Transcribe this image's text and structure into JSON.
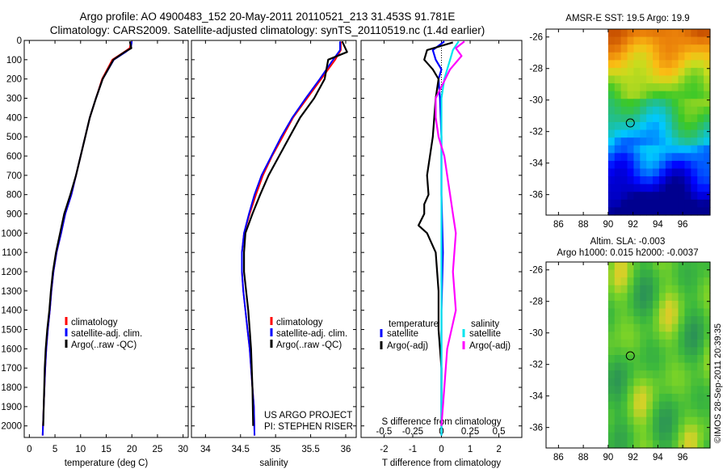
{
  "header": {
    "line1": "Argo profile: AO 4900483_152 20-May-2011 20110521_213 31.453S 91.781E",
    "line2": "Climatology: CARS2009. Satellite-adjusted climatology: synTS_20110519.nc (1.4d earlier)"
  },
  "colors": {
    "clim": "#ff0000",
    "sat": "#0000ff",
    "argo": "#000000",
    "sat_sal": "#00e5ee",
    "argo_sal": "#ff00ff"
  },
  "project_lines": [
    "US ARGO PROJECT",
    "PI: STEPHEN RISER"
  ],
  "footer_stamp": "©IMOS 28-Sep-2011 20:39:35",
  "chart_data": [
    {
      "id": "temperature",
      "type": "line",
      "xlabel": "temperature (deg C)",
      "xlim": [
        -1,
        31
      ],
      "ylim": [
        2060,
        0
      ],
      "xticks": [
        0,
        5,
        10,
        15,
        20,
        25,
        30
      ],
      "yticks": [
        0,
        100,
        200,
        300,
        400,
        500,
        600,
        700,
        800,
        900,
        1000,
        1100,
        1200,
        1300,
        1400,
        1500,
        1600,
        1700,
        1800,
        1900,
        2000
      ],
      "legend": [
        "climatology",
        "satellite-adj. clim.",
        "Argo(..raw -QC)"
      ],
      "series": [
        {
          "key": "clim",
          "name": "climatology",
          "x": [
            19.8,
            19.6,
            18.5,
            16.2,
            14.2,
            13.0,
            11.8,
            10.9,
            10.0,
            9.1,
            8.2,
            7.0,
            6.2,
            5.3,
            4.7,
            4.3,
            4.0,
            3.6,
            3.3,
            3.1,
            2.8,
            2.6
          ],
          "y": [
            5,
            40,
            60,
            100,
            200,
            300,
            400,
            500,
            600,
            700,
            800,
            900,
            1000,
            1100,
            1200,
            1300,
            1400,
            1500,
            1600,
            1700,
            1900,
            2050
          ]
        },
        {
          "key": "sat",
          "name": "satellite-adj. clim.",
          "x": [
            20.0,
            19.8,
            18.8,
            16.5,
            14.3,
            13.0,
            11.8,
            10.9,
            10.0,
            9.1,
            8.2,
            7.0,
            6.2,
            5.3,
            4.7,
            4.3,
            4.0,
            3.6,
            3.3,
            3.1,
            2.8,
            2.6
          ],
          "y": [
            5,
            40,
            60,
            100,
            200,
            300,
            400,
            500,
            600,
            700,
            800,
            900,
            1000,
            1100,
            1200,
            1300,
            1400,
            1500,
            1600,
            1700,
            1900,
            2050
          ]
        },
        {
          "key": "argo",
          "name": "Argo(..raw -QC)",
          "x": [
            19.6,
            19.9,
            18.6,
            16.4,
            14.3,
            13.0,
            11.8,
            10.9,
            10.0,
            9.1,
            8.0,
            6.8,
            6.0,
            5.2,
            4.6,
            4.2,
            3.9,
            3.5,
            3.2,
            3.0,
            2.7
          ],
          "y": [
            5,
            40,
            60,
            100,
            200,
            300,
            400,
            500,
            600,
            700,
            800,
            900,
            1000,
            1100,
            1200,
            1300,
            1400,
            1500,
            1600,
            1700,
            2000
          ]
        }
      ]
    },
    {
      "id": "salinity",
      "type": "line",
      "xlabel": "salinity",
      "xlim": [
        33.8,
        36.15
      ],
      "ylim": [
        2060,
        0
      ],
      "xticks": [
        34,
        34.5,
        35,
        35.5,
        36
      ],
      "legend": [
        "climatology",
        "satellite-adj. clim.",
        "Argo(..raw -QC)"
      ],
      "series": [
        {
          "key": "clim",
          "name": "climatology",
          "x": [
            35.93,
            35.93,
            35.85,
            35.65,
            35.45,
            35.25,
            35.1,
            34.95,
            34.82,
            34.72,
            34.63,
            34.55,
            34.52,
            34.52,
            34.54,
            34.57,
            34.6,
            34.63,
            34.65,
            34.67,
            34.69,
            34.7
          ],
          "y": [
            5,
            50,
            100,
            200,
            300,
            400,
            500,
            600,
            700,
            800,
            900,
            1000,
            1100,
            1200,
            1300,
            1400,
            1500,
            1600,
            1700,
            1800,
            1900,
            2050
          ]
        },
        {
          "key": "sat",
          "name": "satellite-adj. clim.",
          "x": [
            35.92,
            35.92,
            35.82,
            35.63,
            35.43,
            35.24,
            35.08,
            34.94,
            34.8,
            34.7,
            34.62,
            34.55,
            34.52,
            34.52,
            34.54,
            34.57,
            34.6,
            34.63,
            34.65,
            34.67,
            34.69,
            34.7
          ],
          "y": [
            5,
            50,
            100,
            200,
            300,
            400,
            500,
            600,
            700,
            800,
            900,
            1000,
            1100,
            1200,
            1300,
            1400,
            1500,
            1600,
            1700,
            1800,
            1900,
            2050
          ]
        },
        {
          "key": "argo",
          "name": "Argo(..raw -QC)",
          "x": [
            35.95,
            36.02,
            35.75,
            35.7,
            35.55,
            35.35,
            35.2,
            35.05,
            34.9,
            34.78,
            34.67,
            34.57,
            34.55,
            34.55,
            34.58,
            34.61,
            34.63,
            34.65,
            34.67,
            34.68
          ],
          "y": [
            5,
            60,
            100,
            200,
            300,
            400,
            500,
            600,
            700,
            800,
            900,
            1000,
            1100,
            1200,
            1300,
            1400,
            1500,
            1600,
            1800,
            2000
          ]
        }
      ]
    },
    {
      "id": "difference",
      "type": "line",
      "xlabel": "T difference from climatology",
      "xlabel2": "S difference from climatology",
      "xlim": [
        -2.8,
        2.8
      ],
      "ylim": [
        2060,
        0
      ],
      "xticks": [
        -2,
        -1,
        0,
        1,
        2
      ],
      "s_ticks_labels": [
        "-0.5",
        "-0.25",
        "0",
        "0.25",
        "0.5"
      ],
      "s_ticks_values": [
        -2,
        -1,
        0,
        1,
        2
      ],
      "legend_headers": [
        "temperature",
        "salinity"
      ],
      "legend": [
        "satellite",
        "Argo(-adj)",
        "satellite",
        "Argo(-adj)"
      ],
      "series": [
        {
          "key": "sat",
          "name": "satellite",
          "x": [
            0.1,
            -0.3,
            -0.2,
            0.0,
            -0.1,
            -0.05,
            0.0,
            0.0,
            0.05,
            0.0,
            0.0,
            0.0
          ],
          "y": [
            5,
            50,
            100,
            150,
            200,
            300,
            500,
            800,
            1100,
            1400,
            1700,
            2050
          ]
        },
        {
          "key": "argo",
          "name": "Argo(-adj)",
          "x": [
            0.4,
            -0.5,
            -0.6,
            -0.3,
            -0.1,
            -0.2,
            -0.3,
            -0.5,
            -0.45,
            -0.6,
            -0.6,
            -0.8,
            -0.5,
            -0.2,
            -0.1,
            -0.1,
            0.0,
            0.0
          ],
          "y": [
            10,
            50,
            100,
            150,
            200,
            300,
            500,
            700,
            800,
            850,
            900,
            960,
            1000,
            1100,
            1300,
            1500,
            1700,
            2000
          ]
        },
        {
          "key": "sat_sal",
          "name": "satellite",
          "x": [
            0.6,
            0.4,
            0.3,
            0.2,
            0.1,
            0.0,
            0.0,
            0.0,
            0.0,
            0.0
          ],
          "y": [
            5,
            50,
            100,
            150,
            200,
            300,
            600,
            1000,
            1500,
            2050
          ]
        },
        {
          "key": "argo_sal",
          "name": "Argo(-adj)",
          "x": [
            0.8,
            0.5,
            0.7,
            0.3,
            -0.2,
            -0.2,
            -0.1,
            0.1,
            0.2,
            0.3,
            0.4,
            0.5,
            0.4,
            0.5,
            0.2,
            0.1,
            0.0
          ],
          "y": [
            5,
            40,
            80,
            150,
            300,
            400,
            500,
            600,
            700,
            800,
            900,
            1000,
            1200,
            1400,
            1600,
            1800,
            2000
          ]
        }
      ]
    },
    {
      "id": "sst_map",
      "type": "heatmap",
      "title": "AMSR-E SST: 19.5 Argo: 19.9",
      "xticks": [
        86,
        88,
        90,
        92,
        94,
        96
      ],
      "yticks": [
        -26,
        -28,
        -30,
        -32,
        -34,
        -36
      ],
      "xlim": [
        85,
        98.2
      ],
      "ylim": [
        -37.3,
        -25.5
      ],
      "data_xlim": [
        90,
        98.2
      ],
      "float_marker": {
        "lon": 91.781,
        "lat": -31.453
      }
    },
    {
      "id": "sla_map",
      "type": "heatmap",
      "title": "Altim. SLA: -0.003",
      "subtitle": "Argo h1000: 0.015 h2000: -0.0037",
      "xticks": [
        86,
        88,
        90,
        92,
        94,
        96
      ],
      "yticks": [
        -26,
        -28,
        -30,
        -32,
        -34,
        -36
      ],
      "xlim": [
        85,
        98.2
      ],
      "ylim": [
        -37.3,
        -25.5
      ],
      "data_xlim": [
        90,
        98.2
      ],
      "float_marker": {
        "lon": 91.781,
        "lat": -31.453
      }
    }
  ]
}
